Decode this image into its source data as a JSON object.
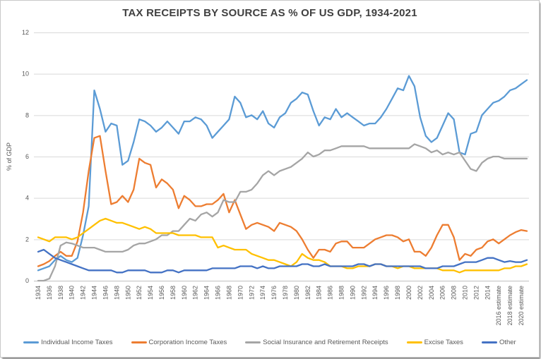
{
  "chart_data": {
    "type": "line",
    "title": "TAX RECEIPTS BY SOURCE AS % OF US GDP, 1934-2021",
    "xlabel": "",
    "ylabel": "% of GDP",
    "ylim": [
      0,
      12
    ],
    "y_ticks": [
      0,
      2,
      4,
      6,
      8,
      10,
      12
    ],
    "grid": "horizontal",
    "legend_position": "bottom",
    "year_start": 1934,
    "year_end": 2021,
    "x_tick_interval": 2,
    "x_tick_labels": [
      "1934",
      "1936",
      "1938",
      "1940",
      "1942",
      "1944",
      "1946",
      "1948",
      "1950",
      "1952",
      "1954",
      "1956",
      "1958",
      "1960",
      "1962",
      "1964",
      "1966",
      "1968",
      "1970",
      "1972",
      "1974",
      "1976",
      "1978",
      "1980",
      "1982",
      "1984",
      "1986",
      "1988",
      "1990",
      "1992",
      "1994",
      "1996",
      "1998",
      "2000",
      "2002",
      "2004",
      "2006",
      "2008",
      "2010",
      "2012",
      "2014",
      "2016 estimate",
      "2018 estimate",
      "2020 estimate"
    ],
    "series": [
      {
        "name": "Individual Income Taxes",
        "color": "#5B9BD5",
        "values": [
          0.5,
          0.6,
          0.7,
          1.0,
          1.2,
          1.0,
          0.9,
          1.1,
          2.2,
          3.6,
          9.2,
          8.3,
          7.2,
          7.6,
          7.5,
          5.6,
          5.8,
          6.7,
          7.8,
          7.7,
          7.5,
          7.2,
          7.4,
          7.7,
          7.4,
          7.1,
          7.7,
          7.7,
          7.9,
          7.8,
          7.5,
          6.9,
          7.2,
          7.5,
          7.8,
          8.9,
          8.6,
          7.9,
          8.0,
          7.8,
          8.2,
          7.6,
          7.4,
          7.9,
          8.1,
          8.6,
          8.8,
          9.1,
          9.0,
          8.2,
          7.5,
          7.9,
          7.8,
          8.3,
          7.9,
          8.1,
          7.9,
          7.7,
          7.5,
          7.6,
          7.6,
          7.9,
          8.3,
          8.8,
          9.3,
          9.2,
          9.9,
          9.4,
          7.9,
          7.0,
          6.7,
          6.9,
          7.5,
          8.1,
          7.8,
          6.2,
          6.1,
          7.1,
          7.2,
          8.0,
          8.3,
          8.6,
          8.7,
          8.9,
          9.2,
          9.3,
          9.5,
          9.7
        ]
      },
      {
        "name": "Corporation Income Taxes",
        "color": "#ED7D31",
        "values": [
          0.7,
          0.8,
          0.95,
          1.2,
          1.4,
          1.2,
          1.2,
          1.9,
          3.3,
          5.3,
          6.9,
          7.0,
          5.3,
          3.7,
          3.8,
          4.1,
          3.8,
          4.4,
          5.9,
          5.7,
          5.6,
          4.5,
          4.9,
          4.7,
          4.4,
          3.5,
          4.1,
          3.9,
          3.6,
          3.6,
          3.7,
          3.7,
          3.9,
          4.2,
          3.3,
          3.9,
          3.2,
          2.5,
          2.7,
          2.8,
          2.7,
          2.6,
          2.4,
          2.8,
          2.7,
          2.6,
          2.4,
          2.0,
          1.5,
          1.1,
          1.5,
          1.5,
          1.4,
          1.8,
          1.9,
          1.9,
          1.6,
          1.6,
          1.6,
          1.8,
          2.0,
          2.1,
          2.2,
          2.2,
          2.1,
          1.9,
          2.0,
          1.4,
          1.4,
          1.2,
          1.6,
          2.2,
          2.7,
          2.7,
          2.1,
          1.0,
          1.3,
          1.2,
          1.5,
          1.6,
          1.9,
          2.0,
          1.8,
          2.0,
          2.2,
          2.35,
          2.45,
          2.4
        ]
      },
      {
        "name": "Social Insurance and Retirement Receipts",
        "color": "#A5A5A5",
        "values": [
          0.0,
          0.0,
          0.1,
          0.7,
          1.7,
          1.85,
          1.8,
          1.7,
          1.6,
          1.6,
          1.6,
          1.5,
          1.4,
          1.4,
          1.4,
          1.4,
          1.5,
          1.7,
          1.8,
          1.8,
          1.9,
          2.0,
          2.2,
          2.2,
          2.4,
          2.4,
          2.7,
          3.0,
          2.9,
          3.2,
          3.3,
          3.1,
          3.3,
          3.9,
          3.8,
          3.8,
          4.3,
          4.3,
          4.4,
          4.7,
          5.1,
          5.3,
          5.1,
          5.3,
          5.4,
          5.5,
          5.7,
          5.9,
          6.2,
          6.0,
          6.1,
          6.3,
          6.3,
          6.4,
          6.5,
          6.5,
          6.5,
          6.5,
          6.5,
          6.4,
          6.4,
          6.4,
          6.4,
          6.4,
          6.4,
          6.4,
          6.4,
          6.6,
          6.5,
          6.4,
          6.2,
          6.3,
          6.1,
          6.2,
          6.1,
          6.2,
          5.8,
          5.4,
          5.3,
          5.7,
          5.9,
          6.0,
          6.0,
          5.9,
          5.9,
          5.9,
          5.9,
          5.9
        ]
      },
      {
        "name": "Excise Taxes",
        "color": "#FFC000",
        "values": [
          2.1,
          2.0,
          1.9,
          2.1,
          2.1,
          2.1,
          2.0,
          2.1,
          2.3,
          2.5,
          2.7,
          2.9,
          3.0,
          2.9,
          2.8,
          2.8,
          2.7,
          2.6,
          2.5,
          2.6,
          2.5,
          2.3,
          2.3,
          2.3,
          2.3,
          2.2,
          2.2,
          2.2,
          2.2,
          2.1,
          2.1,
          2.1,
          1.6,
          1.7,
          1.6,
          1.5,
          1.5,
          1.5,
          1.3,
          1.2,
          1.1,
          1.0,
          1.0,
          0.9,
          0.8,
          0.7,
          0.9,
          1.3,
          1.1,
          1.0,
          1.0,
          0.9,
          0.7,
          0.7,
          0.7,
          0.6,
          0.6,
          0.7,
          0.7,
          0.7,
          0.8,
          0.8,
          0.7,
          0.7,
          0.6,
          0.7,
          0.7,
          0.6,
          0.6,
          0.6,
          0.6,
          0.6,
          0.5,
          0.5,
          0.5,
          0.4,
          0.5,
          0.5,
          0.5,
          0.5,
          0.5,
          0.5,
          0.5,
          0.6,
          0.6,
          0.7,
          0.7,
          0.8
        ]
      },
      {
        "name": "Other",
        "color": "#4472C4",
        "values": [
          1.4,
          1.5,
          1.3,
          1.1,
          1.0,
          0.9,
          0.8,
          0.7,
          0.6,
          0.5,
          0.5,
          0.5,
          0.5,
          0.5,
          0.4,
          0.4,
          0.5,
          0.5,
          0.5,
          0.5,
          0.4,
          0.4,
          0.4,
          0.5,
          0.5,
          0.4,
          0.5,
          0.5,
          0.5,
          0.5,
          0.5,
          0.6,
          0.6,
          0.6,
          0.6,
          0.6,
          0.7,
          0.7,
          0.7,
          0.6,
          0.7,
          0.6,
          0.6,
          0.7,
          0.7,
          0.7,
          0.7,
          0.8,
          0.8,
          0.7,
          0.7,
          0.8,
          0.7,
          0.7,
          0.7,
          0.7,
          0.7,
          0.8,
          0.8,
          0.7,
          0.8,
          0.8,
          0.7,
          0.7,
          0.7,
          0.7,
          0.7,
          0.7,
          0.7,
          0.6,
          0.6,
          0.6,
          0.7,
          0.7,
          0.7,
          0.8,
          0.9,
          0.9,
          0.9,
          1.0,
          1.1,
          1.1,
          1.0,
          0.9,
          0.95,
          0.9,
          0.9,
          1.0
        ]
      }
    ],
    "colors": {
      "grid": "#d9d9d9",
      "axis_line": "#bfbfbf",
      "tick_text": "#595959",
      "title_text": "#404040"
    }
  }
}
